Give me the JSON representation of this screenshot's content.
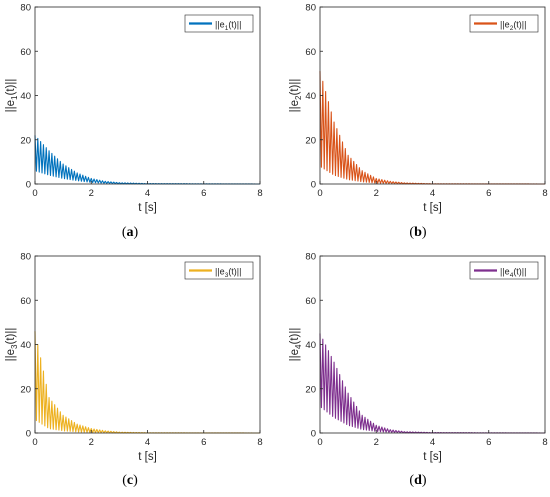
{
  "chart_data": [
    {
      "type": "line",
      "panel_label": "(a)",
      "caption_letter": "a",
      "series": [
        {
          "name": "||e1(t)||",
          "legend_main": "||e",
          "legend_sub": "1",
          "legend_tail": "(t)||",
          "color": "#0072BD"
        }
      ],
      "xlabel": "t [s]",
      "ylabel": {
        "main": "||e",
        "sub": "1",
        "tail": "(t)||"
      },
      "xlim": [
        0,
        8
      ],
      "ylim": [
        0,
        80
      ],
      "xticks": [
        "0",
        "2",
        "4",
        "6",
        "8"
      ],
      "yticks": [
        "0",
        "20",
        "40",
        "60",
        "80"
      ],
      "grid": false,
      "legend_position": "top-right",
      "signal": {
        "peak": 22,
        "low_ratio": 0.3,
        "decay": 1.55,
        "period": 0.1
      },
      "envelope": {
        "t": [
          0,
          0.5,
          1,
          1.5,
          2,
          2.5,
          3,
          4,
          8
        ],
        "upper": [
          22,
          15,
          9,
          5,
          2.5,
          1.2,
          0.6,
          0.2,
          0
        ],
        "lower": [
          6,
          4,
          2.5,
          1.5,
          0.7,
          0.3,
          0.1,
          0,
          0
        ]
      }
    },
    {
      "type": "line",
      "panel_label": "(b)",
      "caption_letter": "b",
      "series": [
        {
          "name": "||e2(t)||",
          "legend_main": "||e",
          "legend_sub": "2",
          "legend_tail": "(t)||",
          "color": "#D95319"
        }
      ],
      "xlabel": "t [s]",
      "ylabel": {
        "main": "||e",
        "sub": "2",
        "tail": "(t)||"
      },
      "xlim": [
        0,
        8
      ],
      "ylim": [
        0,
        80
      ],
      "xticks": [
        "0",
        "2",
        "4",
        "6",
        "8"
      ],
      "yticks": [
        "0",
        "20",
        "40",
        "60",
        "80"
      ],
      "grid": false,
      "legend_position": "top-right",
      "signal": {
        "peak": 51,
        "low_ratio": 0.15,
        "decay": 1.7,
        "period": 0.1
      },
      "envelope": {
        "t": [
          0,
          0.5,
          1,
          1.5,
          2,
          2.5,
          3,
          4,
          8
        ],
        "upper": [
          51,
          28,
          13,
          6,
          2.5,
          1.2,
          0.5,
          0.1,
          0
        ],
        "lower": [
          8,
          4,
          2,
          1,
          0.4,
          0.2,
          0.1,
          0,
          0
        ]
      }
    },
    {
      "type": "line",
      "panel_label": "(c)",
      "caption_letter": "c",
      "series": [
        {
          "name": "||e3(t)||",
          "legend_main": "||e",
          "legend_sub": "3",
          "legend_tail": "(t)||",
          "color": "#EDB120"
        }
      ],
      "xlabel": "t [s]",
      "ylabel": {
        "main": "||e",
        "sub": "3",
        "tail": "(t)||"
      },
      "xlim": [
        0,
        8
      ],
      "ylim": [
        0,
        80
      ],
      "xticks": [
        "0",
        "2",
        "4",
        "6",
        "8"
      ],
      "yticks": [
        "0",
        "20",
        "40",
        "60",
        "80"
      ],
      "grid": false,
      "legend_position": "top-right",
      "signal": {
        "peak": 46,
        "low_ratio": 0.12,
        "decay": 1.9,
        "period": 0.1
      },
      "envelope": {
        "t": [
          0,
          0.5,
          1,
          1.5,
          2,
          2.5,
          3,
          4,
          8
        ],
        "upper": [
          46,
          16,
          8,
          4,
          2,
          1,
          0.4,
          0.1,
          0
        ],
        "lower": [
          6,
          2,
          1,
          0.5,
          0.2,
          0.1,
          0,
          0,
          0
        ]
      }
    },
    {
      "type": "line",
      "panel_label": "(d)",
      "caption_letter": "d",
      "series": [
        {
          "name": "||e4(t)||",
          "legend_main": "||e",
          "legend_sub": "4",
          "legend_tail": "(t)||",
          "color": "#7E2F8E"
        }
      ],
      "xlabel": "t [s]",
      "ylabel": {
        "main": "||e",
        "sub": "4",
        "tail": "(t)||"
      },
      "xlim": [
        0,
        8
      ],
      "ylim": [
        0,
        80
      ],
      "xticks": [
        "0",
        "2",
        "4",
        "6",
        "8"
      ],
      "yticks": [
        "0",
        "20",
        "40",
        "60",
        "80"
      ],
      "grid": false,
      "legend_position": "top-right",
      "signal": {
        "peak": 45,
        "low_ratio": 0.25,
        "decay": 1.7,
        "period": 0.1
      },
      "envelope": {
        "t": [
          0,
          0.5,
          1,
          1.5,
          2,
          2.5,
          3,
          4,
          8
        ],
        "upper": [
          45,
          32,
          18,
          8,
          3.5,
          1.5,
          0.6,
          0.2,
          0
        ],
        "lower": [
          12,
          7,
          3.5,
          1.6,
          0.7,
          0.3,
          0.1,
          0,
          0
        ]
      }
    }
  ]
}
